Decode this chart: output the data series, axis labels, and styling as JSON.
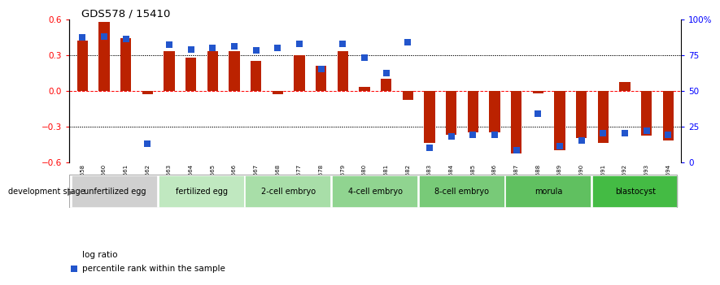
{
  "title": "GDS578 / 15410",
  "samples": [
    "GSM14658",
    "GSM14660",
    "GSM14661",
    "GSM14662",
    "GSM14663",
    "GSM14664",
    "GSM14665",
    "GSM14666",
    "GSM14667",
    "GSM14668",
    "GSM14677",
    "GSM14678",
    "GSM14679",
    "GSM14680",
    "GSM14681",
    "GSM14682",
    "GSM14683",
    "GSM14684",
    "GSM14685",
    "GSM14686",
    "GSM14687",
    "GSM14688",
    "GSM14689",
    "GSM14690",
    "GSM14691",
    "GSM14692",
    "GSM14693",
    "GSM14694"
  ],
  "log_ratio": [
    0.42,
    0.58,
    0.44,
    -0.03,
    0.33,
    0.28,
    0.33,
    0.33,
    0.25,
    -0.03,
    0.3,
    0.21,
    0.33,
    0.03,
    0.1,
    -0.08,
    -0.44,
    -0.37,
    -0.35,
    -0.35,
    -0.53,
    -0.02,
    -0.5,
    -0.4,
    -0.44,
    0.07,
    -0.38,
    -0.42
  ],
  "percentile_rank": [
    87,
    88,
    86,
    13,
    82,
    79,
    80,
    81,
    78,
    80,
    83,
    65,
    83,
    73,
    62,
    84,
    10,
    18,
    19,
    19,
    8,
    34,
    11,
    15,
    20,
    20,
    22,
    19
  ],
  "stages": [
    {
      "label": "unfertilized egg",
      "start": 0,
      "end": 4,
      "color": "#d0d0d0"
    },
    {
      "label": "fertilized egg",
      "start": 4,
      "end": 8,
      "color": "#c0e8c0"
    },
    {
      "label": "2-cell embryo",
      "start": 8,
      "end": 12,
      "color": "#a8dea8"
    },
    {
      "label": "4-cell embryo",
      "start": 12,
      "end": 16,
      "color": "#90d490"
    },
    {
      "label": "8-cell embryo",
      "start": 16,
      "end": 20,
      "color": "#78ca78"
    },
    {
      "label": "morula",
      "start": 20,
      "end": 24,
      "color": "#60c060"
    },
    {
      "label": "blastocyst",
      "start": 24,
      "end": 28,
      "color": "#44bb44"
    }
  ],
  "ylim_left": [
    -0.6,
    0.6
  ],
  "ylim_right": [
    0,
    100
  ],
  "bar_color": "#bb2200",
  "dot_color": "#2255cc",
  "bar_width": 0.5,
  "dot_size": 28,
  "bg_color": "#ffffff"
}
